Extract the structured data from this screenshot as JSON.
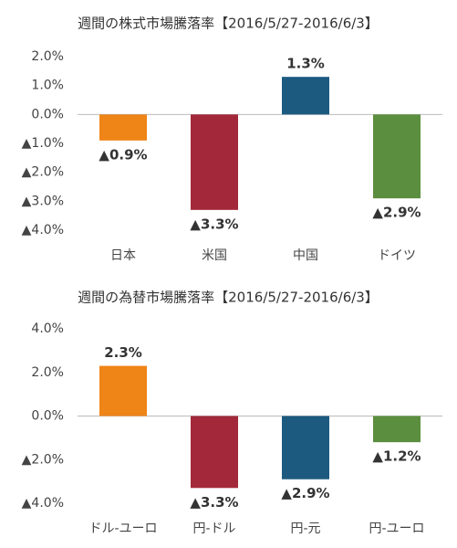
{
  "chart_data": [
    {
      "type": "bar",
      "title": "週間の株式市場騰落率【2016/5/27-2016/6/3】",
      "categories": [
        "日本",
        "米国",
        "中国",
        "ドイツ"
      ],
      "values": [
        -0.9,
        -3.3,
        1.3,
        -2.9
      ],
      "value_labels": [
        "▲0.9%",
        "▲3.3%",
        "1.3%",
        "▲2.9%"
      ],
      "colors": [
        "#ef8417",
        "#a3283a",
        "#1d5a80",
        "#5b8f3f"
      ],
      "ylim": [
        -4,
        2
      ],
      "yticks": [
        {
          "value": 2,
          "label": "2.0%"
        },
        {
          "value": 1,
          "label": "1.0%"
        },
        {
          "value": 0,
          "label": "0.0%"
        },
        {
          "value": -1,
          "label": "▲1.0%"
        },
        {
          "value": -2,
          "label": "▲2.0%"
        },
        {
          "value": -3,
          "label": "▲3.0%"
        },
        {
          "value": -4,
          "label": "▲4.0%"
        }
      ]
    },
    {
      "type": "bar",
      "title": "週間の為替市場騰落率【2016/5/27-2016/6/3】",
      "categories": [
        "ドル-ユーロ",
        "円-ドル",
        "円-元",
        "円-ユーロ"
      ],
      "values": [
        2.3,
        -3.3,
        -2.9,
        -1.2
      ],
      "value_labels": [
        "2.3%",
        "▲3.3%",
        "▲2.9%",
        "▲1.2%"
      ],
      "colors": [
        "#ef8417",
        "#a3283a",
        "#1d5a80",
        "#5b8f3f"
      ],
      "ylim": [
        -4,
        4
      ],
      "yticks": [
        {
          "value": 4,
          "label": "4.0%"
        },
        {
          "value": 2,
          "label": "2.0%"
        },
        {
          "value": 0,
          "label": "0.0%"
        },
        {
          "value": -2,
          "label": "▲2.0%"
        },
        {
          "value": -4,
          "label": "▲4.0%"
        }
      ]
    }
  ]
}
